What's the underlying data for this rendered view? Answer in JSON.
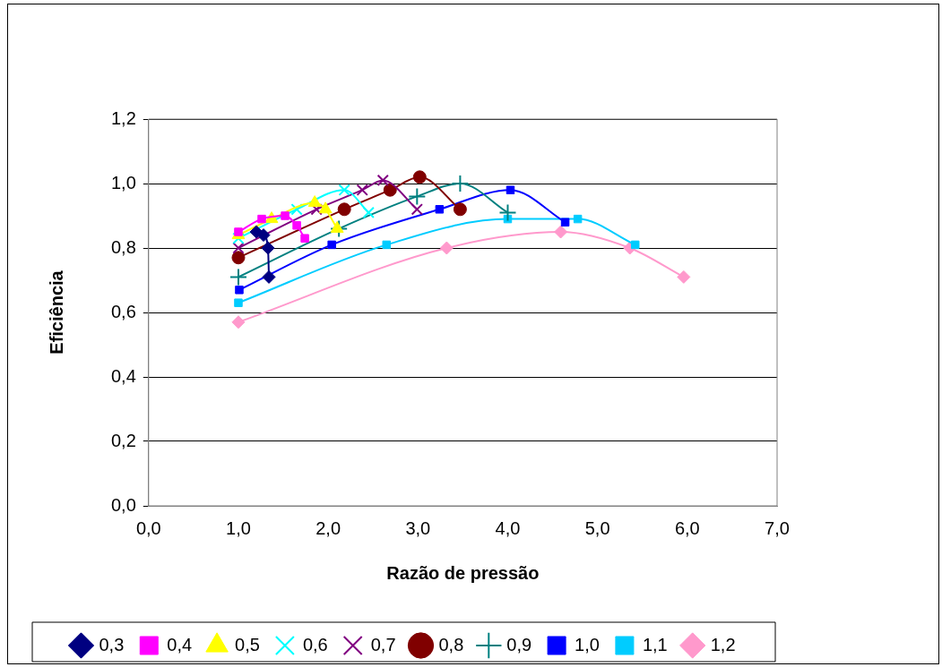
{
  "chart_data": {
    "type": "line",
    "xlabel": "Razão de pressão",
    "ylabel": "Eficiência",
    "xlim": [
      0,
      7
    ],
    "ylim": [
      0,
      1.2
    ],
    "xticks": [
      {
        "value": 0,
        "label": "0,0"
      },
      {
        "value": 1,
        "label": "1,0"
      },
      {
        "value": 2,
        "label": "2,0"
      },
      {
        "value": 3,
        "label": "3,0"
      },
      {
        "value": 4,
        "label": "4,0"
      },
      {
        "value": 5,
        "label": "5,0"
      },
      {
        "value": 6,
        "label": "6,0"
      },
      {
        "value": 7,
        "label": "7,0"
      }
    ],
    "yticks": [
      {
        "value": 0,
        "label": "0,0"
      },
      {
        "value": 0.2,
        "label": "0,2"
      },
      {
        "value": 0.4,
        "label": "0,4"
      },
      {
        "value": 0.6,
        "label": "0,6"
      },
      {
        "value": 0.8,
        "label": "0,8"
      },
      {
        "value": 1,
        "label": "1,0"
      },
      {
        "value": 1.2,
        "label": "1,2"
      }
    ],
    "grid": "y",
    "legend": "bottom",
    "series": [
      {
        "name": "0,3",
        "color": "#000080",
        "marker": "diamond",
        "x": [
          1.2,
          1.28,
          1.33,
          1.34
        ],
        "values": [
          0.85,
          0.84,
          0.8,
          0.71
        ]
      },
      {
        "name": "0,4",
        "color": "#ff00ff",
        "marker": "square",
        "x": [
          1.0,
          1.26,
          1.52,
          1.65,
          1.74
        ],
        "values": [
          0.85,
          0.89,
          0.9,
          0.87,
          0.83
        ]
      },
      {
        "name": "0,5",
        "color": "#ffff00",
        "marker": "triangle",
        "x": [
          1.0,
          1.37,
          1.85,
          1.97,
          2.1
        ],
        "values": [
          0.84,
          0.89,
          0.94,
          0.92,
          0.86
        ]
      },
      {
        "name": "0,6",
        "color": "#00ffff",
        "marker": "cross",
        "x": [
          1.0,
          1.65,
          2.18,
          2.45
        ],
        "values": [
          0.83,
          0.92,
          0.98,
          0.91
        ]
      },
      {
        "name": "0,7",
        "color": "#800080",
        "marker": "cross",
        "x": [
          1.0,
          1.87,
          2.38,
          2.61,
          2.99
        ],
        "values": [
          0.8,
          0.92,
          0.98,
          1.01,
          0.92
        ]
      },
      {
        "name": "0,8",
        "color": "#800000",
        "marker": "circle",
        "x": [
          1.0,
          2.18,
          2.69,
          3.02,
          3.47
        ],
        "values": [
          0.77,
          0.92,
          0.98,
          1.02,
          0.92
        ]
      },
      {
        "name": "0,9",
        "color": "#008080",
        "marker": "plus",
        "x": [
          1.0,
          2.12,
          2.99,
          3.47,
          4.0
        ],
        "values": [
          0.71,
          0.86,
          0.96,
          1.0,
          0.91
        ]
      },
      {
        "name": "1,0",
        "color": "#0000ff",
        "marker": "square",
        "x": [
          1.01,
          2.04,
          3.24,
          4.03,
          4.64
        ],
        "values": [
          0.67,
          0.81,
          0.92,
          0.98,
          0.88
        ]
      },
      {
        "name": "1,1",
        "color": "#00ccff",
        "marker": "square",
        "x": [
          1.0,
          2.65,
          4.0,
          4.78,
          5.42
        ],
        "values": [
          0.63,
          0.81,
          0.89,
          0.89,
          0.81
        ]
      },
      {
        "name": "1,2",
        "color": "#ff99cc",
        "marker": "diamond",
        "x": [
          1.0,
          3.32,
          4.59,
          5.36,
          5.96
        ],
        "values": [
          0.57,
          0.8,
          0.85,
          0.8,
          0.71
        ]
      }
    ]
  }
}
